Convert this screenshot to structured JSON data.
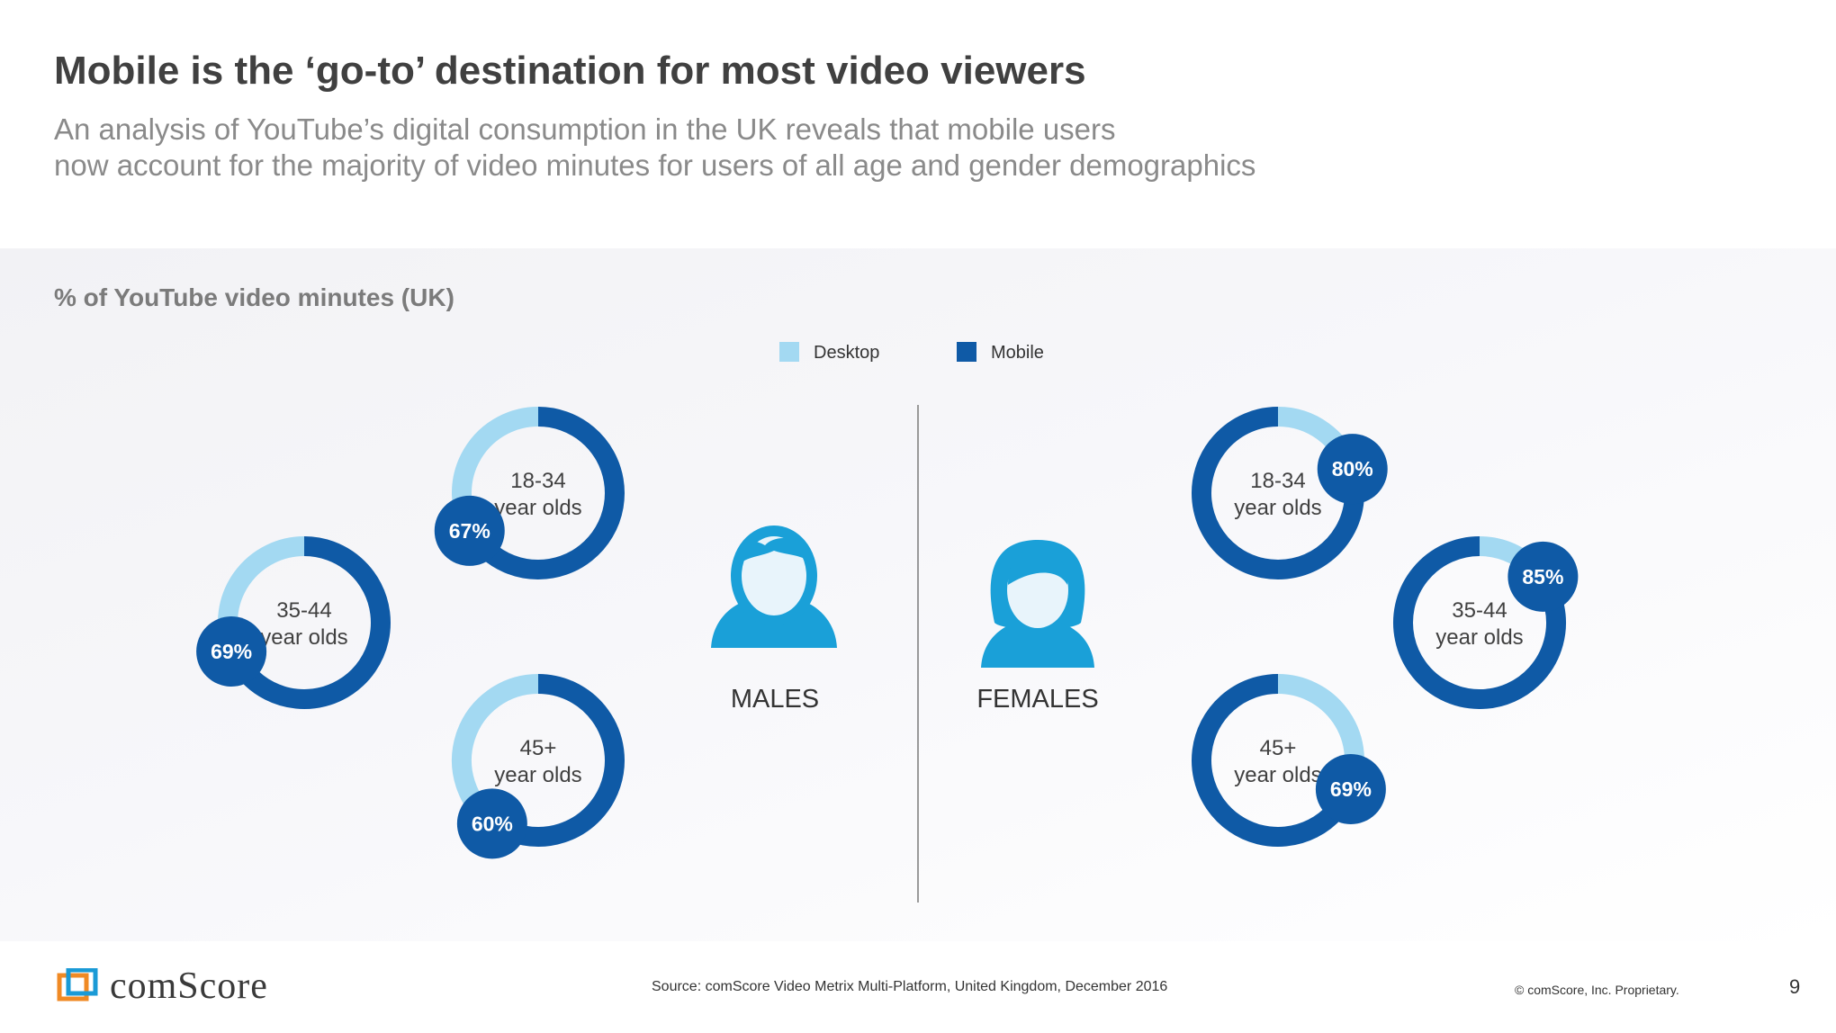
{
  "header": {
    "title": "Mobile is the ‘go-to’ destination for most video viewers",
    "subtitle_line1": "An analysis of YouTube’s digital consumption in the UK reveals that mobile users",
    "subtitle_line2": "now account for the majority of video minutes for users of all age and gender demographics"
  },
  "chart_data": {
    "type": "donut",
    "title": "% of YouTube video minutes (UK)",
    "legend": [
      {
        "name": "Desktop",
        "color": "#a3d9f2"
      },
      {
        "name": "Mobile",
        "color": "#0f5aa6"
      }
    ],
    "legend_position": "top-center",
    "groups": [
      {
        "name": "MALES",
        "icon": "male-person-icon",
        "items": [
          {
            "label_line1": "18-34",
            "label_line2": "year olds",
            "mobile": 67,
            "desktop": 33,
            "value_label": "67%"
          },
          {
            "label_line1": "35-44",
            "label_line2": "year olds",
            "mobile": 69,
            "desktop": 31,
            "value_label": "69%"
          },
          {
            "label_line1": "45+",
            "label_line2": "year olds",
            "mobile": 60,
            "desktop": 40,
            "value_label": "60%"
          }
        ]
      },
      {
        "name": "FEMALES",
        "icon": "female-person-icon",
        "items": [
          {
            "label_line1": "18-34",
            "label_line2": "year olds",
            "mobile": 80,
            "desktop": 20,
            "value_label": "80%"
          },
          {
            "label_line1": "35-44",
            "label_line2": "year olds",
            "mobile": 85,
            "desktop": 15,
            "value_label": "85%"
          },
          {
            "label_line1": "45+",
            "label_line2": "year olds",
            "mobile": 69,
            "desktop": 31,
            "value_label": "69%"
          }
        ]
      }
    ]
  },
  "footer": {
    "logo_text": "comScore",
    "source": "Source: comScore Video Metrix Multi-Platform, United Kingdom, December 2016",
    "copyright": "© comScore, Inc. Proprietary.",
    "page_number": "9"
  }
}
